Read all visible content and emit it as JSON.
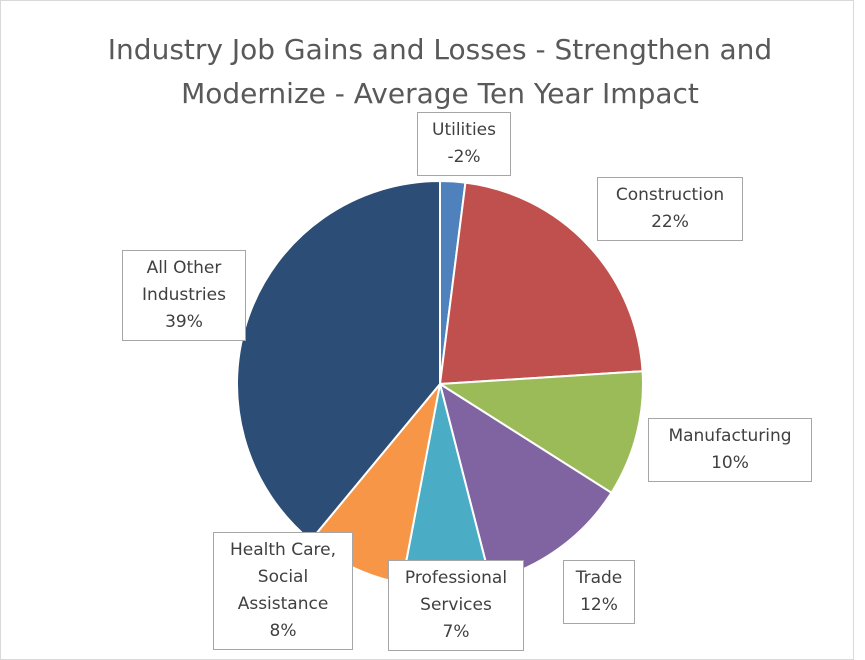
{
  "chart_data": {
    "type": "pie",
    "title": "Industry Job Gains and Losses - Strengthen and Modernize - Average Ten Year Impact",
    "categories": [
      "Utilities",
      "Construction",
      "Manufacturing",
      "Trade",
      "Professional Services",
      "Health Care, Social Assistance",
      "All Other Industries"
    ],
    "values": [
      -2,
      22,
      10,
      12,
      7,
      8,
      39
    ],
    "value_labels": [
      "-2%",
      "22%",
      "10%",
      "12%",
      "7%",
      "8%",
      "39%"
    ],
    "colors": [
      "#4f81bd",
      "#c0504d",
      "#9bbb59",
      "#8064a2",
      "#4bacc6",
      "#f79646",
      "#2c4d75"
    ]
  }
}
